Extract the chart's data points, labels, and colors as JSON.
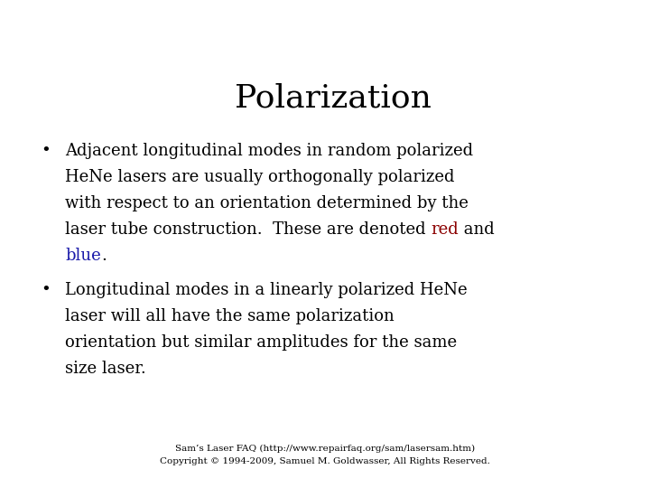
{
  "title": "Polarization",
  "title_fontsize": 26,
  "title_color": "#000000",
  "background_color": "#ffffff",
  "body_fontsize": 13,
  "bullet_fontsize": 13,
  "footer_fontsize": 7.5,
  "footer_color": "#000000",
  "footer_line1": "Sam’s Laser FAQ (http://www.repairfaq.org/sam/lasersam.htm)",
  "footer_line2": "Copyright © 1994-2009, Samuel M. Goldwasser, All Rights Reserved.",
  "black": "#000000",
  "red_color": "#8b0000",
  "blue_color": "#1a1aaa",
  "font_family": "DejaVu Serif",
  "line1": "Adjacent longitudinal modes in random polarized",
  "line2": "HeNe lasers are usually orthogonally polarized",
  "line3": "with respect to an orientation determined by the",
  "line4_pre": "laser tube construction.  These are denoted ",
  "line4_red": "red",
  "line4_post": " and",
  "line5_blue": "blue",
  "line5_end": ".",
  "b2l1": "Longitudinal modes in a linearly polarized HeNe",
  "b2l2": "laser will all have the same polarization",
  "b2l3": "orientation but similar amplitudes for the same",
  "b2l4": "size laser."
}
